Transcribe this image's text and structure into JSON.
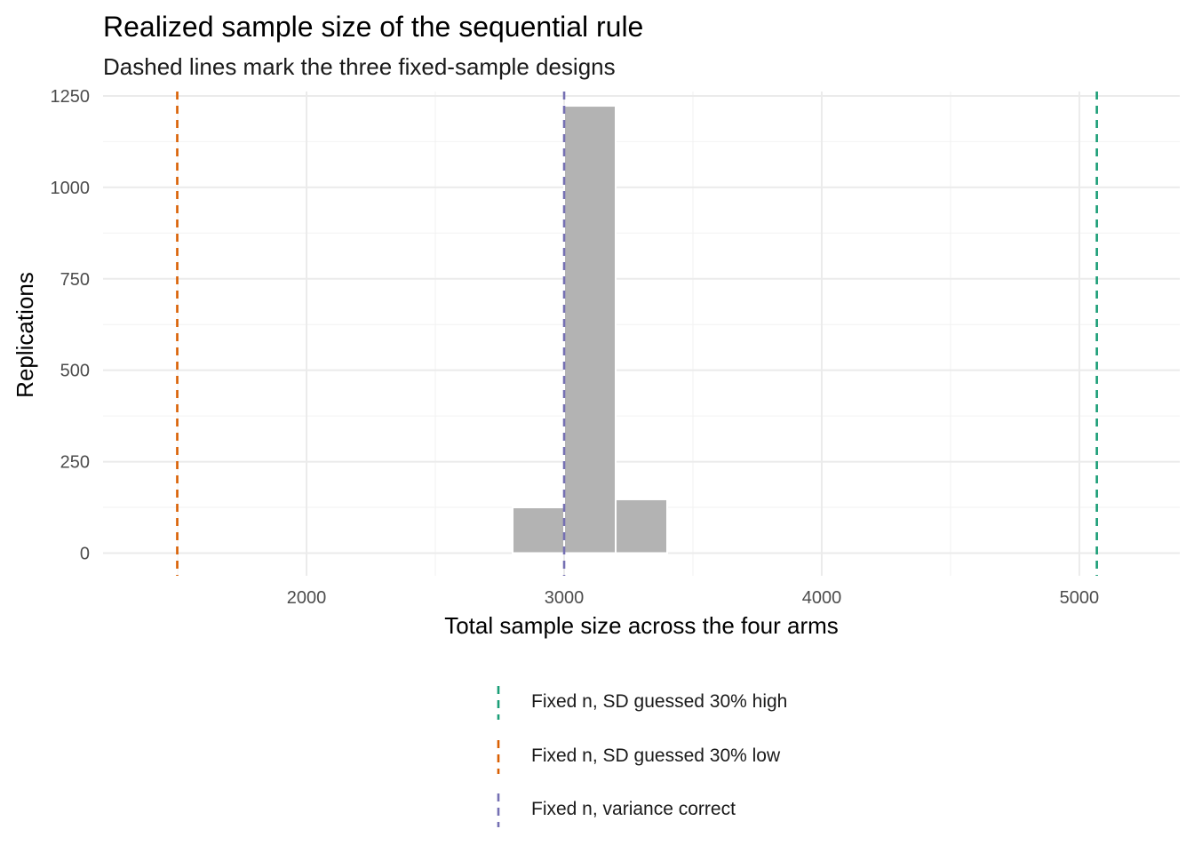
{
  "chart_data": {
    "type": "bar",
    "title": "Realized sample size of the sequential rule",
    "subtitle": "Dashed lines mark the three fixed-sample designs",
    "xlabel": "Total sample size across the four arms",
    "ylabel": "Replications",
    "xlim": [
      1210,
      5390
    ],
    "ylim": [
      -62,
      1262
    ],
    "x_ticks": [
      2000,
      3000,
      4000,
      5000
    ],
    "y_ticks": [
      0,
      250,
      500,
      750,
      1000,
      1250
    ],
    "y_minor_ticks": [
      125,
      375,
      625,
      875,
      1125
    ],
    "x_minor_ticks": [
      1500,
      2500,
      3500,
      4500
    ],
    "bin_width": 200,
    "bins": [
      {
        "x0": 1400,
        "x1": 1600,
        "count": 0
      },
      {
        "x0": 1600,
        "x1": 1800,
        "count": 0
      },
      {
        "x0": 1800,
        "x1": 2000,
        "count": 0
      },
      {
        "x0": 2000,
        "x1": 2200,
        "count": 0
      },
      {
        "x0": 2200,
        "x1": 2400,
        "count": 0
      },
      {
        "x0": 2400,
        "x1": 2600,
        "count": 0
      },
      {
        "x0": 2600,
        "x1": 2800,
        "count": 0
      },
      {
        "x0": 2800,
        "x1": 3000,
        "count": 125
      },
      {
        "x0": 3000,
        "x1": 3200,
        "count": 1223
      },
      {
        "x0": 3200,
        "x1": 3400,
        "count": 147
      },
      {
        "x0": 3400,
        "x1": 3600,
        "count": 0
      },
      {
        "x0": 3600,
        "x1": 3800,
        "count": 0
      },
      {
        "x0": 3800,
        "x1": 4000,
        "count": 0
      },
      {
        "x0": 4000,
        "x1": 4200,
        "count": 0
      },
      {
        "x0": 4200,
        "x1": 4400,
        "count": 0
      },
      {
        "x0": 4400,
        "x1": 4600,
        "count": 0
      },
      {
        "x0": 4600,
        "x1": 4800,
        "count": 0
      },
      {
        "x0": 4800,
        "x1": 5000,
        "count": 0
      },
      {
        "x0": 5000,
        "x1": 5200,
        "count": 0
      }
    ],
    "bar_color": "#b3b3b3",
    "reference_lines": [
      {
        "name": "Fixed n, SD guessed 30% high",
        "x": 5068,
        "color": "#1b9e77"
      },
      {
        "name": "Fixed n, SD guessed 30% low",
        "x": 1498,
        "color": "#d95f02"
      },
      {
        "name": "Fixed n, variance correct",
        "x": 3000,
        "color": "#7570b3"
      }
    ],
    "grid": true,
    "legend_position": "bottom"
  }
}
